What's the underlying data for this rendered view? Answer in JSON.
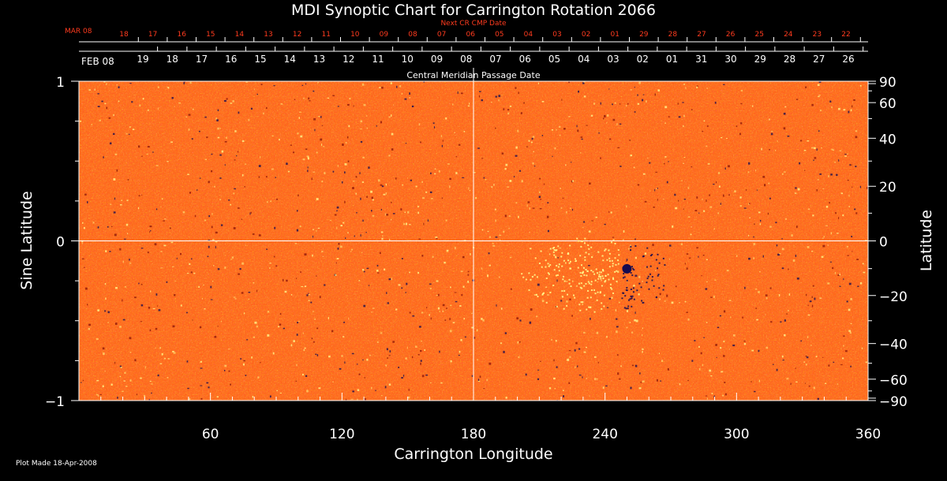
{
  "chart_data": {
    "type": "heatmap",
    "title": "MDI Synoptic Chart for Carrington Rotation 2066",
    "xlabel": "Carrington Longitude",
    "ylabel_left": "Sine Latitude",
    "ylabel_right": "Latitude",
    "xlim": [
      0,
      360
    ],
    "ylim": [
      -1,
      1
    ],
    "x_ticks": [
      60,
      120,
      180,
      240,
      300,
      360
    ],
    "y_ticks_left": [
      1,
      0,
      -1
    ],
    "y_tick_labels_left": [
      "1",
      "0",
      "−1"
    ],
    "y_ticks_right": [
      90,
      60,
      40,
      20,
      0,
      -20,
      -40,
      -60,
      -90
    ],
    "y_tick_labels_right": [
      "90",
      "60",
      "40",
      "20",
      "0",
      "−20",
      "−40",
      "−60",
      "−90"
    ],
    "grid": "crosshair",
    "crosshair": {
      "longitude": 180,
      "sine_latitude": 0
    },
    "cmp_axis_label": "Central Meridian Passage Date",
    "cmp_month_label": "FEB 08",
    "cmp_dates": [
      "19",
      "18",
      "17",
      "16",
      "15",
      "14",
      "13",
      "12",
      "11",
      "10",
      "09",
      "08",
      "07",
      "06",
      "05",
      "04",
      "03",
      "02",
      "01",
      "31",
      "30",
      "29",
      "28",
      "27",
      "26"
    ],
    "next_cmp_axis_label": "Next CR CMP Date",
    "next_cmp_month_label": "MAR 08",
    "next_cmp_dates": [
      "18",
      "17",
      "16",
      "15",
      "14",
      "13",
      "12",
      "11",
      "10",
      "09",
      "08",
      "07",
      "06",
      "05",
      "04",
      "03",
      "02",
      "01",
      "29",
      "28",
      "27",
      "26",
      "25",
      "24",
      "23",
      "22"
    ],
    "features": [
      {
        "type": "active-region",
        "longitude": 250,
        "sine_latitude": -0.16
      }
    ],
    "colors": {
      "background_field": "#ff5a14",
      "dark_polarity": "#140a50",
      "bright_polarity": "#ffff90",
      "next_axis": "#ff3b1e"
    }
  },
  "footer": {
    "plot_made": "Plot Made 18-Apr-2008"
  }
}
